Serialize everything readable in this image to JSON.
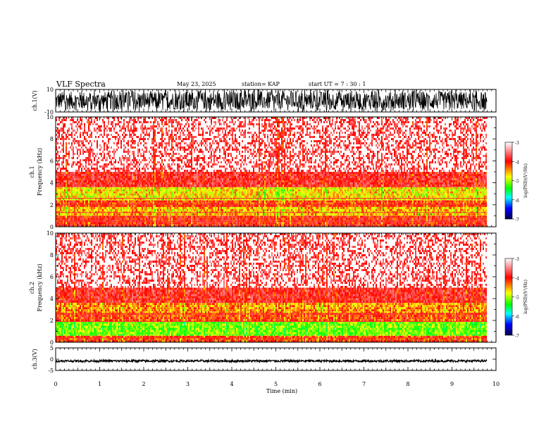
{
  "header": {
    "title": "VLF Spectra",
    "date": "May 23, 2025",
    "station": "station= KAP",
    "start": "start  UT =   7 : 30 : 1"
  },
  "chart_data": [
    {
      "type": "line",
      "name": "ch1-waveform",
      "ylabel": "ch.1(V)",
      "ylim": [
        -10,
        10
      ],
      "yticks": [
        "10",
        "-10"
      ],
      "xlim": [
        0,
        10
      ],
      "data_extent_min": 9.8,
      "envelope": {
        "typical_range": [
          -8,
          8
        ],
        "description_values": "dense oscillation filling roughly -8 to +8 V"
      }
    },
    {
      "type": "heatmap",
      "name": "ch1-spectrogram",
      "ylabel_line1": "ch.1",
      "ylabel_line2": "Frequency  (kHz)",
      "xlim": [
        0,
        10
      ],
      "ylim": [
        0,
        10
      ],
      "yticks": [
        "0",
        "2",
        "4",
        "6",
        "8",
        "10"
      ],
      "data_extent_min": 9.8,
      "bands": [
        {
          "from_khz": 0.0,
          "to_khz": 1.0,
          "level": -3.9
        },
        {
          "from_khz": 1.0,
          "to_khz": 1.8,
          "level": -4.3
        },
        {
          "from_khz": 1.8,
          "to_khz": 2.4,
          "level": -4.0
        },
        {
          "from_khz": 2.4,
          "to_khz": 3.6,
          "level": -4.4
        },
        {
          "from_khz": 3.6,
          "to_khz": 5.0,
          "level": -3.8
        },
        {
          "from_khz": 5.0,
          "to_khz": 10.0,
          "level": -3.3
        }
      ]
    },
    {
      "type": "heatmap",
      "name": "ch2-spectrogram",
      "ylabel_line1": "ch.2",
      "ylabel_line2": "Frequency  (kHz)",
      "xlim": [
        0,
        10
      ],
      "ylim": [
        0,
        10
      ],
      "yticks": [
        "0",
        "2",
        "4",
        "6",
        "8",
        "10"
      ],
      "data_extent_min": 9.8,
      "bands": [
        {
          "from_khz": 0.0,
          "to_khz": 0.6,
          "level": -4.0
        },
        {
          "from_khz": 0.6,
          "to_khz": 1.9,
          "level": -4.7
        },
        {
          "from_khz": 1.9,
          "to_khz": 2.7,
          "level": -4.0
        },
        {
          "from_khz": 2.7,
          "to_khz": 3.6,
          "level": -4.2
        },
        {
          "from_khz": 3.6,
          "to_khz": 5.0,
          "level": -3.8
        },
        {
          "from_khz": 5.0,
          "to_khz": 10.0,
          "level": -3.3
        }
      ]
    },
    {
      "type": "line",
      "name": "ch3-waveform",
      "ylabel": "ch.3(V)",
      "ylim": [
        -5,
        5
      ],
      "yticks": [
        "5",
        "0",
        "-5"
      ],
      "xlim": [
        0,
        10
      ],
      "data_extent_min": 9.8,
      "envelope": {
        "typical_range": [
          -1.3,
          -0.3
        ]
      }
    }
  ],
  "colorbar": {
    "label": "log(PSD)(V²/Hz)",
    "ticks": [
      "-3",
      "-4",
      "-5",
      "-6",
      "-7"
    ],
    "range": [
      -7,
      -3
    ],
    "colors": [
      "#ffffff",
      "#ff0000",
      "#ffff00",
      "#00ff00",
      "#00ffff",
      "#0000ff",
      "#000060"
    ]
  },
  "xaxis": {
    "label": "Time  (min)",
    "ticks": [
      "0",
      "1",
      "2",
      "3",
      "4",
      "5",
      "6",
      "7",
      "8",
      "9",
      "10"
    ]
  }
}
